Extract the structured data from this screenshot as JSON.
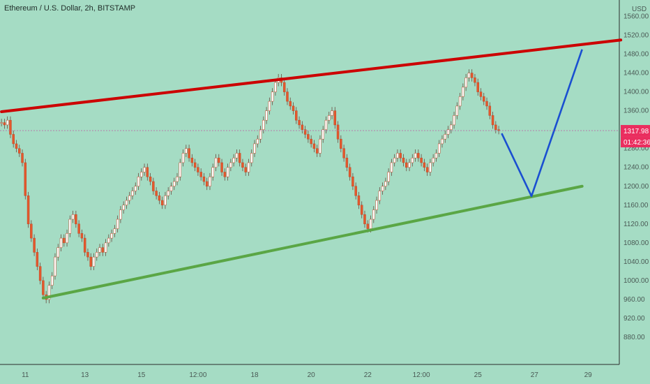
{
  "header": {
    "title": "Ethereum / U.S. Dollar, 2h, BITSTAMP"
  },
  "chart_data": {
    "type": "candlestick",
    "currency_label": "USD",
    "y_ticks": [
      880,
      920,
      960,
      1000,
      1040,
      1080,
      1120,
      1160,
      1200,
      1240,
      1280,
      1320,
      1360,
      1400,
      1440,
      1480,
      1520,
      1560
    ],
    "y_tick_labels": [
      "880.00",
      "920.00",
      "960.00",
      "1000.00",
      "1040.00",
      "1080.00",
      "1120.00",
      "1160.00",
      "1200.00",
      "1240.00",
      "1280.00",
      "1320.00",
      "1360.00",
      "1400.00",
      "1440.00",
      "1480.00",
      "1520.00",
      "1560.00"
    ],
    "ylim": [
      840,
      1580
    ],
    "x_tick_labels": [
      "11",
      "13",
      "15",
      "12:00",
      "18",
      "20",
      "22",
      "12:00",
      "25",
      "27",
      "29"
    ],
    "x_tick_index": [
      8,
      28,
      47,
      66,
      85,
      104,
      123,
      141,
      160,
      179,
      197
    ],
    "x_count": 208,
    "current_price_label": "1317.98",
    "current_price": 1317.98,
    "countdown_label": "01:42:36",
    "close_series": [
      1335,
      1330,
      1340,
      1310,
      1290,
      1280,
      1270,
      1250,
      1180,
      1120,
      1090,
      1060,
      1030,
      1000,
      970,
      960,
      990,
      1010,
      1050,
      1070,
      1090,
      1080,
      1100,
      1130,
      1140,
      1120,
      1100,
      1090,
      1060,
      1050,
      1030,
      1050,
      1060,
      1070,
      1060,
      1080,
      1090,
      1100,
      1110,
      1130,
      1150,
      1160,
      1170,
      1180,
      1190,
      1200,
      1220,
      1230,
      1240,
      1220,
      1210,
      1190,
      1180,
      1170,
      1160,
      1180,
      1190,
      1200,
      1210,
      1220,
      1250,
      1270,
      1280,
      1260,
      1250,
      1240,
      1230,
      1220,
      1210,
      1200,
      1220,
      1240,
      1260,
      1250,
      1230,
      1220,
      1240,
      1250,
      1260,
      1270,
      1250,
      1240,
      1230,
      1250,
      1270,
      1290,
      1300,
      1320,
      1340,
      1360,
      1380,
      1400,
      1420,
      1430,
      1420,
      1400,
      1380,
      1370,
      1360,
      1340,
      1330,
      1320,
      1310,
      1300,
      1290,
      1280,
      1270,
      1300,
      1320,
      1340,
      1350,
      1360,
      1330,
      1300,
      1280,
      1260,
      1240,
      1220,
      1200,
      1180,
      1160,
      1140,
      1120,
      1110,
      1130,
      1150,
      1170,
      1190,
      1200,
      1210,
      1230,
      1250,
      1260,
      1270,
      1260,
      1250,
      1240,
      1250,
      1260,
      1270,
      1260,
      1250,
      1240,
      1230,
      1250,
      1260,
      1270,
      1290,
      1300,
      1310,
      1320,
      1330,
      1350,
      1370,
      1390,
      1410,
      1430,
      1440,
      1430,
      1420,
      1400,
      1390,
      1380,
      1370,
      1350,
      1330,
      1320,
      1318
    ],
    "annotations": [
      {
        "kind": "trendline",
        "color": "#cc0000",
        "from": {
          "x": 0,
          "y": 1358
        },
        "to": {
          "x": 208,
          "y": 1510
        }
      },
      {
        "kind": "trendline",
        "color": "#5aa645",
        "from": {
          "x": 14,
          "y": 963
        },
        "to": {
          "x": 195,
          "y": 1200
        }
      },
      {
        "kind": "arrow",
        "color": "#1a4fd1",
        "path": [
          {
            "x": 168,
            "y": 1312
          },
          {
            "x": 178,
            "y": 1179
          },
          {
            "x": 195,
            "y": 1490
          }
        ]
      }
    ]
  }
}
